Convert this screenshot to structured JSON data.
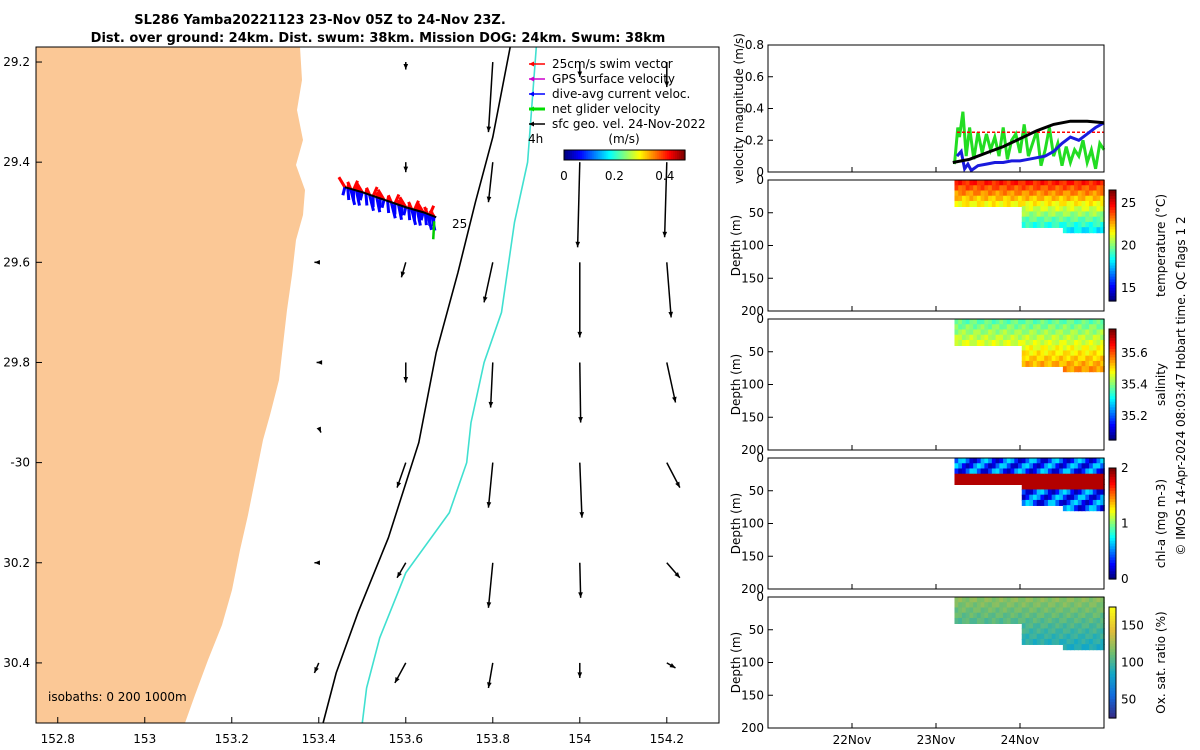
{
  "title": {
    "line1": "SL286 Yamba20221123 23-Nov 05Z to 24-Nov 23Z.",
    "line2": "Dist. over ground: 24km. Dist. swum: 38km. Mission DOG: 24km. Swum: 38km"
  },
  "map": {
    "xlim": [
      152.75,
      154.32
    ],
    "ylim": [
      -30.52,
      -29.17
    ],
    "x_ticks": [
      152.8,
      153,
      153.2,
      153.4,
      153.6,
      153.8,
      154,
      154.2
    ],
    "x_tick_labels": [
      "152.8",
      "153",
      "153.2",
      "153.4",
      "153.6",
      "153.8",
      "154",
      "154.2"
    ],
    "y_ticks": [
      -29.2,
      -29.4,
      -29.6,
      -29.8,
      -30,
      -30.2,
      -30.4
    ],
    "y_tick_labels": [
      "29.2",
      "29.4",
      "29.6",
      "29.8",
      "-30",
      "30.2",
      "30.4"
    ],
    "legend": [
      {
        "label": "25cm/s swim vector",
        "color": "#ff0000"
      },
      {
        "label": "GPS surface velocity",
        "color": "#cc00cc"
      },
      {
        "label": "dive-avg current veloc.",
        "color": "#0000ff"
      },
      {
        "label": "net glider velocity",
        "color": "#00dd00"
      },
      {
        "label": "sfc geo. vel. 24-Nov-2022",
        "color": "#000000"
      }
    ],
    "timestep_label": "4h",
    "end_label": "25",
    "colorbar": {
      "title": "(m/s)",
      "ticks": [
        0,
        0.2,
        0.4
      ],
      "tick_labels": [
        "0",
        "0.2",
        "0.4"
      ],
      "range": [
        0,
        0.48
      ]
    },
    "isobath_label": "isobaths: 0   200  1000m",
    "colors": {
      "land": "#fbc896",
      "isobath_200": "#000000",
      "isobath_1000": "#40e0d0"
    },
    "isobath_200": [
      [
        153.84,
        -29.17
      ],
      [
        153.8,
        -29.35
      ],
      [
        153.76,
        -29.48
      ],
      [
        153.72,
        -29.62
      ],
      [
        153.67,
        -29.78
      ],
      [
        153.63,
        -29.96
      ],
      [
        153.56,
        -30.15
      ],
      [
        153.49,
        -30.3
      ],
      [
        153.44,
        -30.42
      ],
      [
        153.41,
        -30.52
      ]
    ],
    "isobath_1000": [
      [
        153.9,
        -29.17
      ],
      [
        153.88,
        -29.4
      ],
      [
        153.85,
        -29.52
      ],
      [
        153.82,
        -29.7
      ],
      [
        153.78,
        -29.8
      ],
      [
        153.75,
        -29.92
      ],
      [
        153.74,
        -30.0
      ],
      [
        153.7,
        -30.1
      ],
      [
        153.6,
        -30.22
      ],
      [
        153.54,
        -30.35
      ],
      [
        153.51,
        -30.45
      ],
      [
        153.5,
        -30.52
      ]
    ],
    "track": [
      [
        153.46,
        -29.45
      ],
      [
        153.5,
        -29.46
      ],
      [
        153.55,
        -29.475
      ],
      [
        153.6,
        -29.49
      ],
      [
        153.64,
        -29.5
      ],
      [
        153.67,
        -29.51
      ]
    ],
    "geo_vectors": [
      [
        153.6,
        -29.2,
        0.0,
        -0.015
      ],
      [
        153.8,
        -29.2,
        -0.01,
        -0.14
      ],
      [
        154.0,
        -29.2,
        0.0,
        -0.03
      ],
      [
        154.2,
        -29.2,
        0.0,
        -0.05
      ],
      [
        153.6,
        -29.4,
        0.0,
        -0.02
      ],
      [
        153.8,
        -29.4,
        -0.01,
        -0.08
      ],
      [
        154.0,
        -29.4,
        -0.005,
        -0.17
      ],
      [
        154.2,
        -29.4,
        -0.005,
        -0.15
      ],
      [
        153.4,
        -29.6,
        -0.01,
        0.0
      ],
      [
        153.6,
        -29.6,
        -0.01,
        -0.03
      ],
      [
        153.8,
        -29.6,
        -0.02,
        -0.08
      ],
      [
        154.0,
        -29.6,
        0.0,
        -0.15
      ],
      [
        154.2,
        -29.6,
        0.01,
        -0.11
      ],
      [
        153.4,
        -29.8,
        -0.005,
        0.0
      ],
      [
        153.6,
        -29.8,
        0.0,
        -0.04
      ],
      [
        153.8,
        -29.8,
        -0.005,
        -0.09
      ],
      [
        154.0,
        -29.8,
        0.002,
        -0.12
      ],
      [
        154.2,
        -29.8,
        0.02,
        -0.08
      ],
      [
        153.4,
        -29.93,
        0.005,
        -0.01
      ],
      [
        153.6,
        -30.0,
        -0.02,
        -0.05
      ],
      [
        153.8,
        -30.0,
        -0.01,
        -0.09
      ],
      [
        154.0,
        -30.0,
        0.005,
        -0.11
      ],
      [
        154.2,
        -30.0,
        0.03,
        -0.05
      ],
      [
        153.4,
        -30.2,
        -0.01,
        0.0
      ],
      [
        153.6,
        -30.2,
        -0.02,
        -0.03
      ],
      [
        153.8,
        -30.2,
        -0.01,
        -0.09
      ],
      [
        154.0,
        -30.2,
        0.002,
        -0.07
      ],
      [
        154.2,
        -30.2,
        0.03,
        -0.03
      ],
      [
        153.4,
        -30.4,
        -0.01,
        -0.02
      ],
      [
        153.6,
        -30.4,
        -0.025,
        -0.04
      ],
      [
        153.8,
        -30.4,
        -0.01,
        -0.05
      ],
      [
        154.0,
        -30.4,
        0.0,
        -0.03
      ],
      [
        154.2,
        -30.4,
        0.02,
        -0.01
      ]
    ]
  },
  "velocity_panel": {
    "type": "line",
    "ylabel": "velocity magnitude (m/s)",
    "ylim": [
      0,
      0.8
    ],
    "y_ticks": [
      0,
      0.2,
      0.4,
      0.6,
      0.8
    ],
    "y_tick_labels": [
      "0",
      "0.2",
      "0.4",
      "0.6",
      "0.8"
    ],
    "xlim": [
      21.0,
      25.0
    ],
    "series": [
      {
        "name": "net glider velocity",
        "color": "#22dd22",
        "x": [
          23.22,
          23.26,
          23.28,
          23.32,
          23.36,
          23.4,
          23.45,
          23.5,
          23.55,
          23.6,
          23.65,
          23.7,
          23.75,
          23.8,
          23.85,
          23.9,
          23.95,
          24.0,
          24.05,
          24.1,
          24.15,
          24.2,
          24.25,
          24.3,
          24.35,
          24.4,
          24.45,
          24.5,
          24.55,
          24.6,
          24.65,
          24.7,
          24.75,
          24.8,
          24.85,
          24.9,
          24.95,
          25.0
        ],
        "y": [
          0.05,
          0.28,
          0.22,
          0.38,
          0.1,
          0.28,
          0.08,
          0.25,
          0.12,
          0.24,
          0.14,
          0.22,
          0.1,
          0.28,
          0.08,
          0.2,
          0.24,
          0.12,
          0.3,
          0.1,
          0.18,
          0.26,
          0.04,
          0.14,
          0.28,
          0.1,
          0.18,
          0.04,
          0.16,
          0.06,
          0.14,
          0.1,
          0.2,
          0.06,
          0.14,
          0.02,
          0.18,
          0.14
        ]
      },
      {
        "name": "swim speed",
        "color": "#ff0000",
        "x": [
          23.25,
          25.0
        ],
        "y": [
          0.25,
          0.25
        ]
      },
      {
        "name": "dive-avg current",
        "color": "#1a1add",
        "x": [
          23.25,
          23.3,
          23.34,
          23.38,
          23.42,
          23.5,
          23.6,
          23.7,
          23.8,
          23.9,
          24.0,
          24.1,
          24.2,
          24.3,
          24.4,
          24.5,
          24.6,
          24.7,
          24.8,
          24.9,
          25.0
        ],
        "y": [
          0.1,
          0.13,
          0.02,
          0.05,
          0.01,
          0.04,
          0.05,
          0.06,
          0.06,
          0.07,
          0.07,
          0.08,
          0.09,
          0.1,
          0.13,
          0.18,
          0.22,
          0.2,
          0.24,
          0.28,
          0.31
        ]
      },
      {
        "name": "sfc geo velocity",
        "color": "#000000",
        "x": [
          23.2,
          23.4,
          23.6,
          23.8,
          24.0,
          24.2,
          24.4,
          24.6,
          24.8,
          25.0
        ],
        "y": [
          0.06,
          0.08,
          0.12,
          0.16,
          0.21,
          0.26,
          0.3,
          0.32,
          0.32,
          0.31
        ]
      }
    ]
  },
  "time_axis": {
    "ticks": [
      22,
      23,
      24
    ],
    "tick_labels": [
      "22Nov",
      "23Nov",
      "24Nov"
    ]
  },
  "depth_panels": [
    {
      "name": "temperature",
      "cbar_label": "temperature (°C)",
      "clim": [
        13.5,
        26.5
      ],
      "cticks": [
        15,
        20,
        25
      ],
      "ctick_labels": [
        "15",
        "20",
        "25"
      ],
      "surface": 24.5,
      "deep": 17.5
    },
    {
      "name": "salinity",
      "cbar_label": "salinity",
      "clim": [
        35.05,
        35.75
      ],
      "cticks": [
        35.2,
        35.4,
        35.6
      ],
      "ctick_labels": [
        "35.2",
        "35.4",
        "35.6"
      ],
      "surface": 35.38,
      "deep": 35.58
    },
    {
      "name": "chl-a",
      "cbar_label": "chl-a (mg m-3)",
      "clim": [
        0,
        2
      ],
      "cticks": [
        0,
        1,
        2
      ],
      "ctick_labels": [
        "0",
        "1",
        "2"
      ],
      "surface": 0.5,
      "deep": 1.8
    },
    {
      "name": "oxygen",
      "cbar_label": "Ox. sat. ratio (%)",
      "clim": [
        25,
        175
      ],
      "cticks": [
        50,
        100,
        150
      ],
      "ctick_labels": [
        "50",
        "100",
        "150"
      ],
      "surface": 120,
      "deep": 85
    }
  ],
  "depth_axis": {
    "ylabel": "Depth (m)",
    "ylim": [
      0,
      200
    ],
    "y_ticks": [
      0,
      50,
      100,
      150,
      200
    ],
    "y_tick_labels": [
      "0",
      "50",
      "100",
      "150",
      "200"
    ]
  },
  "footer": "© IMOS 14-Apr-2024 08:03:47 Hobart time. QC flags 1  2"
}
